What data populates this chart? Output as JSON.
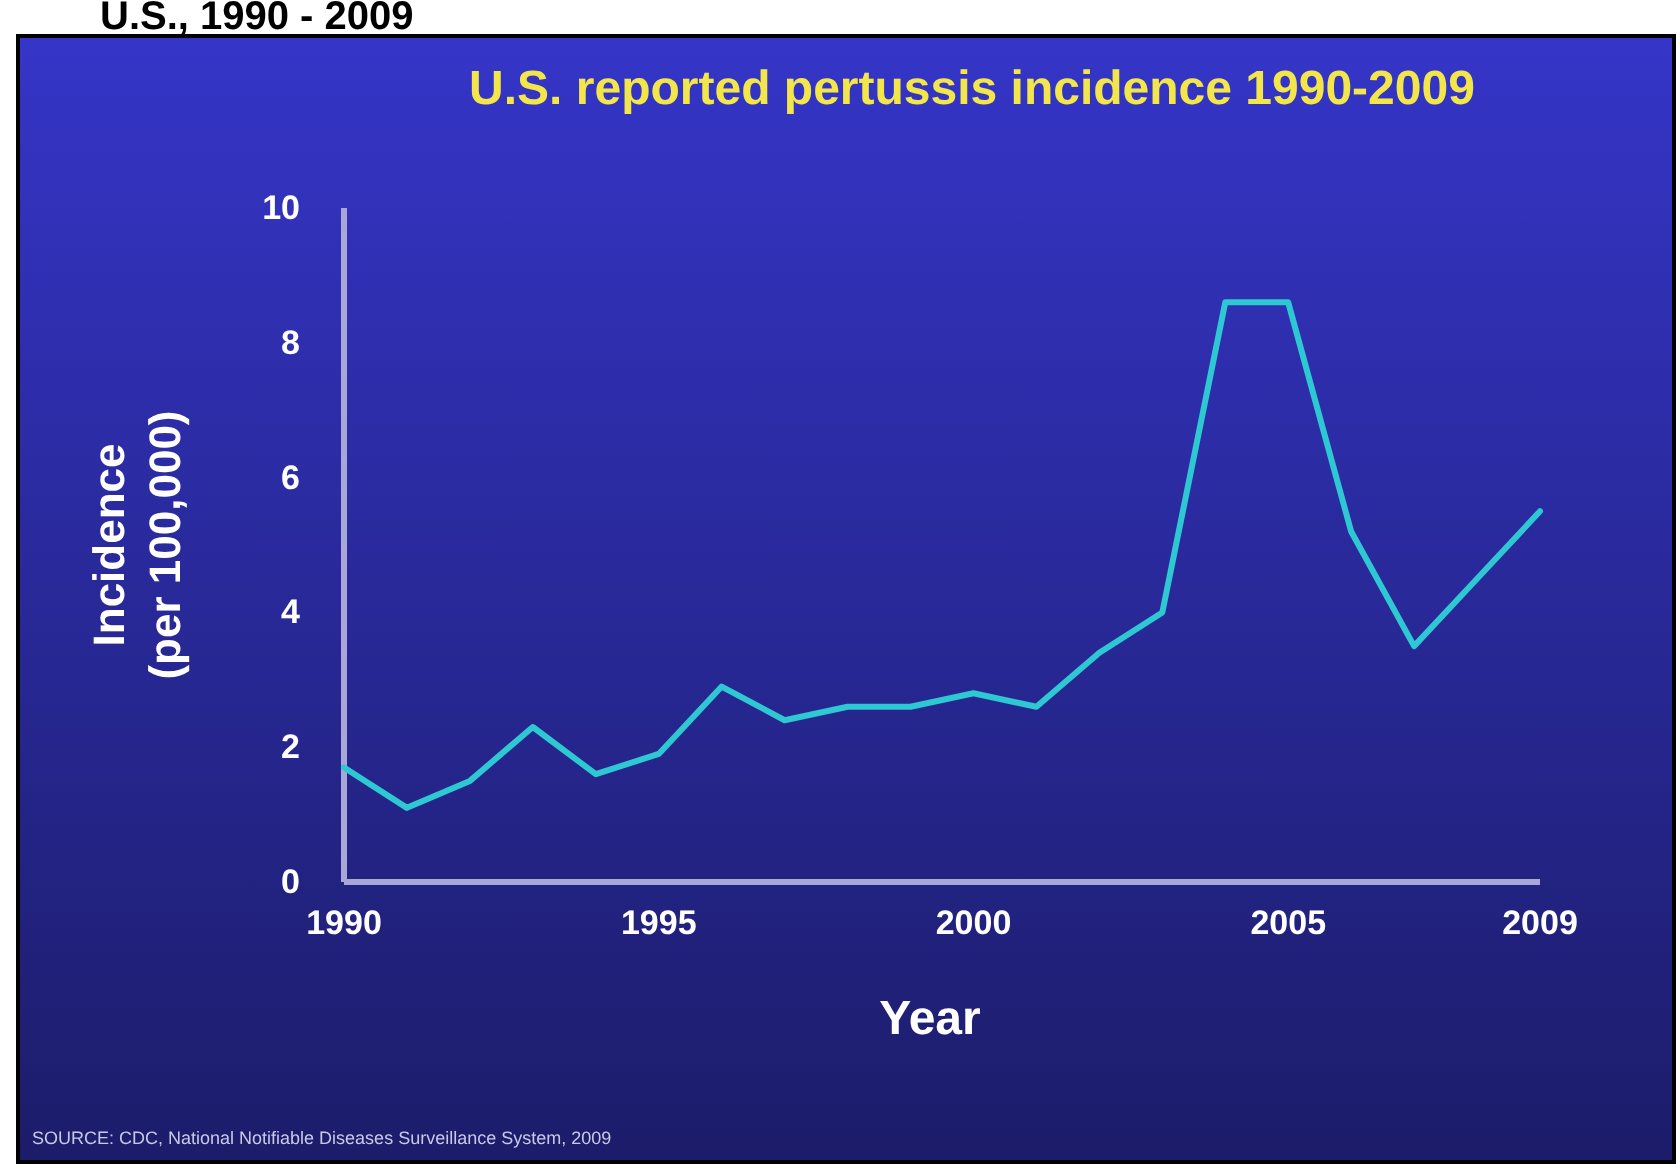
{
  "chart_data": {
    "type": "line",
    "title": "U.S. reported pertussis incidence 1990-2009",
    "subtitle": "U.S., 1990 - 2009",
    "xlabel": "Year",
    "ylabel": "Incidence\n(per 100,000)",
    "x": [
      1990,
      1991,
      1992,
      1993,
      1994,
      1995,
      1996,
      1997,
      1998,
      1999,
      2000,
      2001,
      2002,
      2003,
      2004,
      2005,
      2006,
      2007,
      2008,
      2009
    ],
    "series": [
      {
        "color": "#2ec8d2",
        "values": [
          1.7,
          1.1,
          1.5,
          2.3,
          1.6,
          1.9,
          2.9,
          2.4,
          2.6,
          2.6,
          2.8,
          2.6,
          3.4,
          4.0,
          8.6,
          8.6,
          5.2,
          3.5,
          4.5,
          5.5
        ]
      }
    ],
    "xlim": [
      1990,
      2009
    ],
    "xticks": [
      1990,
      1995,
      2000,
      2005,
      2009
    ],
    "ylim": [
      0,
      10
    ],
    "yticks": [
      0,
      2,
      4,
      6,
      8,
      10
    ],
    "grid": false,
    "marker": "none",
    "line_style": "solid",
    "annotations": [
      "SOURCE: CDC, National Notifiable Diseases Surveillance System, 2009"
    ]
  }
}
